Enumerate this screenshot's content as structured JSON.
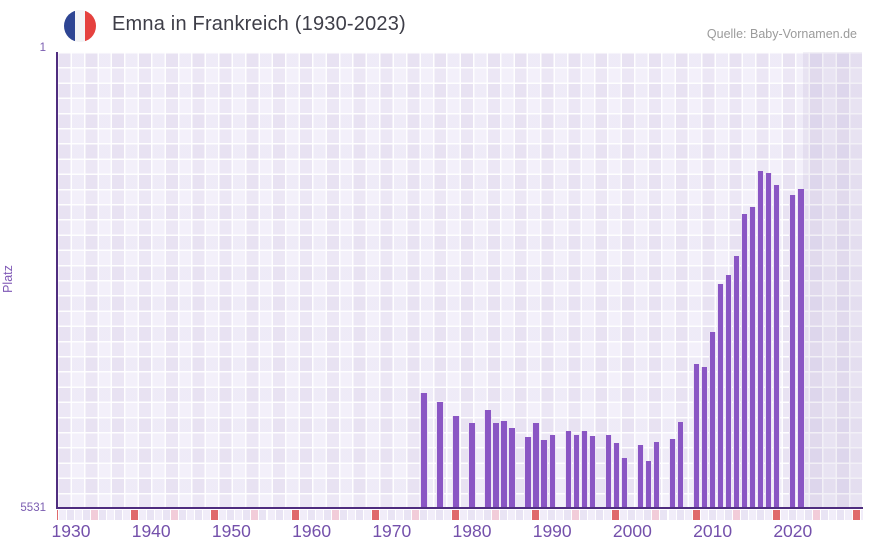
{
  "header": {
    "source": "Quelle: Baby-Vornamen.de",
    "flag_icon": "french-flag-icon",
    "flag_colors": {
      "blue": "#2e4593",
      "white": "#f4f4f6",
      "red": "#e5413e"
    }
  },
  "chart_data": {
    "type": "bar",
    "title": "Emna in Frankreich (1930-2023)",
    "ylabel": "Platz",
    "y_axis": {
      "top_label": "1",
      "bottom_label": "5531",
      "min": 1,
      "max": 5531,
      "inverted": true
    },
    "x_axis": {
      "tick_labels": [
        "1930",
        "1940",
        "1950",
        "1960",
        "1970",
        "1980",
        "1990",
        "2000",
        "2010",
        "2020"
      ],
      "first_year": 1928,
      "last_year": 2029
    },
    "no_data_region": {
      "from_year": 2022,
      "to_year": 2023
    },
    "points": [
      {
        "year": 1974,
        "rank": 4140
      },
      {
        "year": 1976,
        "rank": 4250
      },
      {
        "year": 1978,
        "rank": 4420
      },
      {
        "year": 1980,
        "rank": 4500
      },
      {
        "year": 1982,
        "rank": 4340
      },
      {
        "year": 1983,
        "rank": 4500
      },
      {
        "year": 1984,
        "rank": 4470
      },
      {
        "year": 1985,
        "rank": 4560
      },
      {
        "year": 1987,
        "rank": 4670
      },
      {
        "year": 1988,
        "rank": 4500
      },
      {
        "year": 1989,
        "rank": 4710
      },
      {
        "year": 1990,
        "rank": 4650
      },
      {
        "year": 1992,
        "rank": 4600
      },
      {
        "year": 1993,
        "rank": 4650
      },
      {
        "year": 1994,
        "rank": 4600
      },
      {
        "year": 1995,
        "rank": 4660
      },
      {
        "year": 1997,
        "rank": 4650
      },
      {
        "year": 1998,
        "rank": 4740
      },
      {
        "year": 1999,
        "rank": 4930
      },
      {
        "year": 2001,
        "rank": 4770
      },
      {
        "year": 2002,
        "rank": 4960
      },
      {
        "year": 2003,
        "rank": 4730
      },
      {
        "year": 2005,
        "rank": 4700
      },
      {
        "year": 2006,
        "rank": 4490
      },
      {
        "year": 2008,
        "rank": 3790
      },
      {
        "year": 2009,
        "rank": 3820
      },
      {
        "year": 2010,
        "rank": 3400
      },
      {
        "year": 2011,
        "rank": 2820
      },
      {
        "year": 2012,
        "rank": 2700
      },
      {
        "year": 2013,
        "rank": 2470
      },
      {
        "year": 2014,
        "rank": 1960
      },
      {
        "year": 2015,
        "rank": 1880
      },
      {
        "year": 2016,
        "rank": 1440
      },
      {
        "year": 2017,
        "rank": 1470
      },
      {
        "year": 2018,
        "rank": 1610
      },
      {
        "year": 2020,
        "rank": 1730
      },
      {
        "year": 2021,
        "rank": 1660
      }
    ],
    "colors": {
      "bar": "#8a56c4",
      "axis_line": "#4f2d7f",
      "strip_red": "#e06a6c",
      "strip_pink": "#f2ccd9",
      "strip_base_a": "#f1edf9",
      "strip_base_b": "#e9e4f4"
    },
    "strip_marker_rule": {
      "red_year_ending": 8,
      "pink_year_ending": 3
    }
  }
}
